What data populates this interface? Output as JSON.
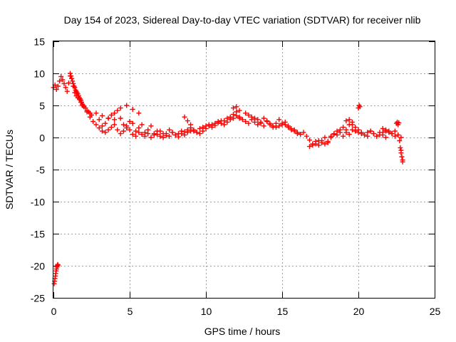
{
  "chart_data": {
    "type": "scatter",
    "title": "Day 154 of 2023, Sidereal Day-to-day VTEC variation (SDTVAR) for receiver nlib",
    "xlabel": "GPS time / hours",
    "ylabel": "SDTVAR / TECUs",
    "xlim": [
      0,
      25
    ],
    "ylim": [
      -25,
      15
    ],
    "xticks": [
      0,
      5,
      10,
      15,
      20,
      25
    ],
    "yticks": [
      -25,
      -20,
      -15,
      -10,
      -5,
      0,
      5,
      10,
      15
    ],
    "grid": true,
    "marker": "+",
    "color": "#ff0000",
    "series": [
      {
        "name": "SDTVAR",
        "x": [
          0.05,
          0.08,
          0.1,
          0.13,
          0.15,
          0.18,
          0.2,
          0.23,
          0.25,
          0.28,
          0.3,
          0.0,
          0.1,
          0.2,
          0.3,
          0.4,
          0.5,
          0.6,
          0.7,
          0.8,
          0.9,
          1.0,
          1.1,
          1.2,
          1.3,
          1.4,
          1.5,
          1.6,
          1.7,
          1.8,
          1.9,
          2.0,
          2.2,
          2.4,
          2.6,
          2.8,
          3.0,
          3.2,
          3.4,
          3.6,
          3.8,
          4.0,
          4.2,
          4.4,
          4.6,
          4.8,
          5.0,
          5.2,
          5.4,
          5.6,
          5.8,
          6.0,
          6.2,
          6.4,
          6.6,
          6.8,
          7.0,
          7.2,
          7.4,
          7.6,
          7.8,
          8.0,
          8.2,
          8.4,
          8.6,
          8.8,
          9.0,
          9.2,
          9.4,
          9.6,
          9.8,
          10.0,
          10.2,
          10.4,
          10.6,
          10.8,
          11.0,
          11.2,
          11.4,
          11.6,
          11.8,
          12.0,
          12.2,
          12.4,
          12.6,
          12.8,
          13.0,
          13.2,
          13.4,
          13.6,
          13.8,
          14.0,
          14.2,
          14.4,
          14.6,
          14.8,
          15.0,
          15.2,
          15.4,
          15.6,
          15.8,
          16.0,
          16.2,
          16.4,
          16.6,
          16.8,
          17.0,
          17.2,
          17.4,
          17.6,
          17.8,
          18.0,
          18.2,
          18.4,
          18.6,
          18.8,
          19.0,
          19.2,
          19.4,
          19.6,
          19.8,
          20.0,
          20.2,
          20.4,
          20.6,
          20.8,
          21.0,
          21.2,
          21.4,
          21.6,
          21.8,
          22.0,
          22.2,
          22.4,
          22.6,
          22.8,
          22.9,
          1.1,
          1.15,
          1.2,
          1.25,
          1.3,
          1.35,
          1.4,
          1.45,
          1.5,
          1.55,
          1.6,
          1.65,
          1.7,
          1.75,
          1.8,
          1.85,
          1.9,
          1.95,
          2.0,
          2.1,
          2.2,
          2.3,
          2.4,
          2.5,
          3.0,
          3.2,
          3.4,
          3.6,
          3.8,
          4.0,
          4.2,
          4.4,
          4.6,
          4.8,
          5.0,
          5.2,
          5.4,
          5.6,
          5.8,
          6.0,
          6.2,
          6.4,
          6.6,
          6.8,
          7.0,
          7.2,
          7.4,
          7.6,
          7.8,
          8.0,
          8.2,
          8.4,
          8.6,
          8.8,
          9.0,
          9.2,
          9.4,
          9.6,
          9.8,
          10.0,
          10.2,
          10.4,
          10.6,
          10.8,
          11.0,
          11.2,
          11.4,
          11.6,
          11.8,
          12.0,
          12.2,
          12.6,
          12.8,
          13.0,
          13.2,
          13.4,
          13.6,
          13.8,
          14.0,
          14.2,
          14.4,
          14.6,
          14.8,
          15.0,
          15.2,
          15.4,
          15.6,
          15.8,
          16.0,
          16.8,
          17.0,
          17.2,
          17.4,
          17.6,
          17.8,
          18.0,
          18.2,
          18.4,
          18.6,
          18.8,
          19.0,
          19.2,
          19.4,
          19.6,
          20.0,
          20.05,
          20.1,
          20.6,
          20.8,
          21.0,
          21.2,
          21.4,
          21.6,
          21.8,
          22.0,
          22.2,
          22.4,
          22.6,
          22.8,
          22.5,
          22.55,
          22.6,
          22.65,
          22.7,
          22.75,
          22.8,
          22.85,
          22.9,
          2.8,
          3.2,
          3.6,
          4.0,
          4.4,
          4.8,
          5.2,
          5.6,
          8.6,
          8.8,
          9.0,
          11.8,
          12.0,
          12.2,
          19.2,
          19.4,
          19.6,
          19.8,
          20.0,
          20.2,
          21.6,
          21.8
        ],
        "y": [
          -22.8,
          -22.4,
          -22.0,
          -21.6,
          -21.2,
          -20.8,
          -20.5,
          -20.2,
          -20.0,
          -19.8,
          -19.9,
          7.8,
          8.2,
          7.5,
          8.0,
          8.8,
          9.5,
          9.0,
          8.4,
          7.8,
          7.2,
          8.5,
          9.6,
          9.2,
          8.0,
          7.0,
          6.5,
          6.2,
          6.0,
          5.5,
          5.0,
          4.8,
          4.0,
          3.2,
          2.5,
          2.0,
          2.8,
          1.8,
          2.2,
          3.0,
          3.5,
          3.8,
          4.2,
          3.0,
          2.0,
          1.5,
          2.5,
          2.2,
          1.0,
          1.5,
          2.0,
          0.8,
          1.2,
          1.8,
          0.6,
          0.5,
          1.0,
          0.6,
          0.3,
          1.2,
          0.8,
          0.4,
          0.6,
          1.0,
          0.9,
          1.2,
          1.5,
          1.0,
          0.8,
          0.6,
          1.0,
          1.4,
          1.8,
          2.0,
          2.2,
          2.5,
          2.2,
          2.6,
          3.0,
          3.2,
          3.6,
          4.0,
          3.2,
          2.8,
          2.5,
          2.2,
          2.8,
          2.4,
          2.0,
          2.2,
          1.8,
          2.5,
          2.0,
          1.6,
          2.2,
          1.8,
          2.0,
          2.4,
          1.8,
          1.4,
          1.2,
          0.8,
          0.5,
          0.8,
          0.2,
          -0.4,
          -1.2,
          -1.0,
          -0.5,
          -0.8,
          -1.0,
          -0.6,
          0.0,
          0.5,
          1.0,
          0.8,
          0.2,
          1.2,
          2.0,
          2.4,
          1.0,
          0.8,
          0.6,
          0.4,
          0.8,
          1.0,
          0.6,
          0.2,
          0.4,
          0.8,
          1.2,
          1.0,
          0.6,
          1.0,
          0.4,
          -2.0,
          -3.5,
          10.0,
          9.6,
          9.2,
          8.8,
          8.4,
          8.0,
          7.8,
          7.4,
          7.2,
          7.0,
          6.8,
          6.5,
          6.2,
          6.0,
          5.8,
          5.5,
          5.2,
          5.0,
          4.8,
          4.6,
          4.2,
          4.0,
          3.8,
          3.5,
          1.5,
          1.0,
          0.8,
          1.2,
          1.6,
          2.0,
          1.2,
          0.6,
          1.0,
          1.8,
          1.2,
          0.5,
          0.2,
          0.8,
          0.5,
          0.2,
          0.6,
          0.0,
          0.4,
          1.0,
          0.2,
          0.0,
          0.6,
          0.2,
          0.8,
          0.4,
          0.1,
          0.6,
          0.4,
          0.8,
          1.0,
          1.2,
          0.8,
          1.4,
          1.6,
          1.8,
          2.0,
          1.6,
          1.9,
          2.3,
          2.6,
          2.0,
          2.4,
          2.8,
          3.0,
          3.4,
          3.0,
          3.8,
          3.5,
          3.2,
          3.0,
          2.8,
          2.4,
          3.0,
          2.6,
          2.2,
          1.8,
          1.6,
          2.8,
          2.2,
          2.0,
          1.6,
          1.2,
          1.0,
          0.6,
          -1.4,
          -1.0,
          -0.6,
          -1.2,
          -0.5,
          0.0,
          -0.8,
          0.2,
          0.6,
          0.4,
          1.2,
          1.6,
          0.8,
          0.5,
          1.2,
          4.6,
          5.0,
          4.8,
          0.2,
          1.0,
          0.6,
          0.2,
          0.8,
          1.4,
          1.0,
          0.8,
          0.6,
          0.2,
          0.4,
          0.0,
          2.2,
          2.4,
          2.0,
          2.3,
          -0.5,
          -1.6,
          -2.4,
          -3.0,
          -3.8,
          3.8,
          3.4,
          3.0,
          2.8,
          4.6,
          5.0,
          4.4,
          3.8,
          3.2,
          2.6,
          2.0,
          4.6,
          4.8,
          4.2,
          2.6,
          2.8,
          2.0,
          1.6,
          1.2,
          0.8,
          0.4,
          0.0
        ]
      }
    ]
  }
}
